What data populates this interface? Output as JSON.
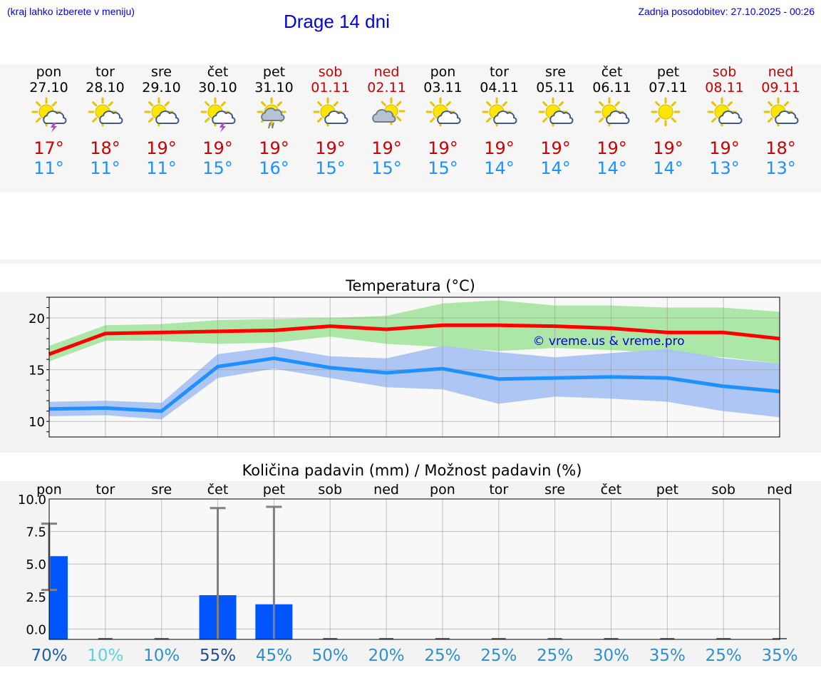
{
  "header": {
    "location_hint": "(kraj lahko izberete v meniju)",
    "title": "Drage 14 dni",
    "updated": "Zadnja posodobitev: 27.10.2025 - 00:26"
  },
  "colors": {
    "max_temp": "#cc0000",
    "min_temp": "#1e90ff",
    "max_band": "#a8e6a3",
    "min_band": "#a9c3f2",
    "precip_bar": "#0055ff",
    "title_blue": "#0000ee"
  },
  "days": [
    {
      "name": "pon",
      "date": "27.10",
      "weekend": false,
      "icon": "sun-cloud-thunder-icon",
      "tmax": "17°",
      "tmin": "11°",
      "prob": "70%",
      "prob_color": "#1f5fa8"
    },
    {
      "name": "tor",
      "date": "28.10",
      "weekend": false,
      "icon": "sun-cloud-icon",
      "tmax": "18°",
      "tmin": "11°",
      "prob": "10%",
      "prob_color": "#5bd2e0"
    },
    {
      "name": "sre",
      "date": "29.10",
      "weekend": false,
      "icon": "sun-cloud-icon",
      "tmax": "19°",
      "tmin": "11°",
      "prob": "10%",
      "prob_color": "#2f8fd0"
    },
    {
      "name": "čet",
      "date": "30.10",
      "weekend": false,
      "icon": "sun-cloud-thunder-icon",
      "tmax": "19°",
      "tmin": "15°",
      "prob": "55%",
      "prob_color": "#1f4f90"
    },
    {
      "name": "pet",
      "date": "31.10",
      "weekend": false,
      "icon": "sun-cloud-rain-icon",
      "tmax": "19°",
      "tmin": "16°",
      "prob": "45%",
      "prob_color": "#2a8ed0"
    },
    {
      "name": "sob",
      "date": "01.11",
      "weekend": true,
      "icon": "sun-cloud-icon",
      "tmax": "19°",
      "tmin": "15°",
      "prob": "50%",
      "prob_color": "#2f8fd0"
    },
    {
      "name": "ned",
      "date": "02.11",
      "weekend": true,
      "icon": "cloud-sun-icon",
      "tmax": "19°",
      "tmin": "15°",
      "prob": "20%",
      "prob_color": "#2f8fd0"
    },
    {
      "name": "pon",
      "date": "03.11",
      "weekend": false,
      "icon": "sun-cloud-icon",
      "tmax": "19°",
      "tmin": "15°",
      "prob": "25%",
      "prob_color": "#2f8fd0"
    },
    {
      "name": "tor",
      "date": "04.11",
      "weekend": false,
      "icon": "sun-cloud-icon",
      "tmax": "19°",
      "tmin": "14°",
      "prob": "25%",
      "prob_color": "#2f8fd0"
    },
    {
      "name": "sre",
      "date": "05.11",
      "weekend": false,
      "icon": "sun-cloud-icon",
      "tmax": "19°",
      "tmin": "14°",
      "prob": "25%",
      "prob_color": "#2f8fd0"
    },
    {
      "name": "čet",
      "date": "06.11",
      "weekend": false,
      "icon": "sun-cloud-icon",
      "tmax": "19°",
      "tmin": "14°",
      "prob": "30%",
      "prob_color": "#2f8fd0"
    },
    {
      "name": "pet",
      "date": "07.11",
      "weekend": false,
      "icon": "sun-icon",
      "tmax": "19°",
      "tmin": "14°",
      "prob": "35%",
      "prob_color": "#2f8fd0"
    },
    {
      "name": "sob",
      "date": "08.11",
      "weekend": true,
      "icon": "sun-cloud-icon",
      "tmax": "19°",
      "tmin": "13°",
      "prob": "25%",
      "prob_color": "#2f8fd0"
    },
    {
      "name": "ned",
      "date": "09.11",
      "weekend": true,
      "icon": "sun-cloud-icon",
      "tmax": "18°",
      "tmin": "13°",
      "prob": "35%",
      "prob_color": "#2f8fd0"
    }
  ],
  "chart_data": [
    {
      "type": "line",
      "title": "Temperatura (°C)",
      "x": [
        0,
        1,
        2,
        3,
        4,
        5,
        6,
        7,
        8,
        9,
        10,
        11,
        12,
        13
      ],
      "ylim": [
        8.5,
        22
      ],
      "yticks": [
        10,
        15,
        20
      ],
      "grid": true,
      "watermark": "© vreme.us & vreme.pro",
      "series": [
        {
          "values": [
            16.5,
            18.5,
            18.6,
            18.7,
            18.8,
            19.2,
            18.9,
            19.3,
            19.3,
            19.2,
            19.0,
            18.6,
            18.6,
            18.0
          ],
          "band_high": [
            17.3,
            19.3,
            19.4,
            19.8,
            19.9,
            20.0,
            20.2,
            21.4,
            21.7,
            21.2,
            21.2,
            21.0,
            21.0,
            20.6
          ],
          "band_low": [
            15.8,
            17.8,
            17.8,
            17.5,
            17.6,
            18.2,
            17.5,
            17.2,
            16.8,
            17.1,
            16.9,
            16.6,
            16.2,
            15.6
          ]
        },
        {
          "values": [
            11.2,
            11.3,
            11.0,
            15.3,
            16.1,
            15.2,
            14.7,
            15.1,
            14.1,
            14.2,
            14.3,
            14.2,
            13.4,
            12.9
          ],
          "band_high": [
            11.9,
            12.0,
            11.8,
            16.5,
            17.2,
            16.3,
            16.1,
            17.3,
            16.7,
            16.2,
            16.6,
            17.0,
            16.1,
            15.6
          ],
          "band_low": [
            10.5,
            10.6,
            10.2,
            14.2,
            15.1,
            14.2,
            13.3,
            13.1,
            11.7,
            12.4,
            12.2,
            11.9,
            11.0,
            10.4
          ]
        }
      ]
    },
    {
      "type": "bar",
      "title": "Količina padavin (mm) / Možnost padavin (%)",
      "categories": [
        "pon",
        "tor",
        "sre",
        "čet",
        "pet",
        "sob",
        "ned",
        "pon",
        "tor",
        "sre",
        "čet",
        "pet",
        "sob",
        "ned"
      ],
      "ylim": [
        -0.8,
        10
      ],
      "yticks": [
        "0.0",
        "2.5",
        "5.0",
        "7.5",
        "10.0"
      ],
      "grid": true,
      "values": [
        5.6,
        0,
        0,
        2.6,
        1.9,
        0,
        0,
        0,
        0,
        0,
        0,
        0,
        0,
        0
      ],
      "error_low": [
        3.0,
        0,
        0,
        0,
        0,
        0,
        0,
        0,
        0,
        0,
        0,
        0,
        0,
        0
      ],
      "error_high": [
        8.1,
        0,
        0,
        9.3,
        9.4,
        0,
        0,
        0,
        0,
        0,
        0,
        0,
        0,
        0
      ]
    }
  ]
}
